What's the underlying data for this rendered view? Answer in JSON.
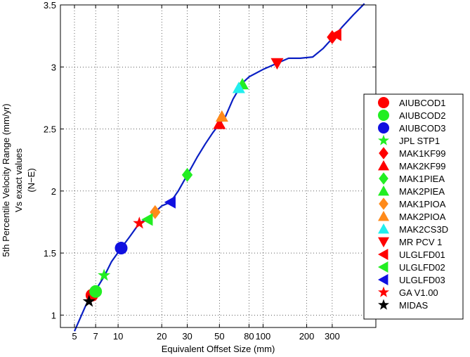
{
  "chart_data": {
    "type": "scatter",
    "title": "",
    "xlabel": "Equivalent Offset Size (mm)",
    "ylabel_lines": [
      "5th Percentile Velocity Range (mm/yr)",
      "Vs exact values",
      "(N−E)"
    ],
    "xscale": "log",
    "xlim": [
      4,
      600
    ],
    "ylim": [
      0.9,
      3.5
    ],
    "x_ticks": [
      5,
      7,
      10,
      20,
      30,
      50,
      80,
      100,
      200,
      300
    ],
    "x_tick_labels": [
      "5",
      "7",
      "10",
      "20",
      "30",
      "50",
      "80",
      "100",
      "200",
      "300"
    ],
    "y_ticks": [
      1,
      1.5,
      2,
      2.5,
      3,
      3.5
    ],
    "y_tick_labels": [
      "1",
      "1.5",
      "2",
      "2.5",
      "3",
      "3.5"
    ],
    "grid": "dotted",
    "legend_position": "right",
    "curve": {
      "color": "#0a1fc4",
      "points": [
        [
          5.0,
          0.87
        ],
        [
          5.5,
          0.98
        ],
        [
          6.0,
          1.08
        ],
        [
          6.5,
          1.15
        ],
        [
          7.0,
          1.2
        ],
        [
          8.0,
          1.31
        ],
        [
          9.0,
          1.43
        ],
        [
          10.5,
          1.54
        ],
        [
          12.0,
          1.63
        ],
        [
          14.0,
          1.74
        ],
        [
          16.0,
          1.78
        ],
        [
          18.0,
          1.83
        ],
        [
          20.0,
          1.88
        ],
        [
          23.0,
          1.91
        ],
        [
          26.0,
          2.0
        ],
        [
          30.0,
          2.13
        ],
        [
          35.0,
          2.27
        ],
        [
          40.0,
          2.38
        ],
        [
          45.0,
          2.47
        ],
        [
          50.0,
          2.54
        ],
        [
          55.0,
          2.6
        ],
        [
          62.0,
          2.74
        ],
        [
          68.0,
          2.82
        ],
        [
          72.0,
          2.87
        ],
        [
          80.0,
          2.92
        ],
        [
          100.0,
          2.98
        ],
        [
          125.0,
          3.03
        ],
        [
          150.0,
          3.07
        ],
        [
          180.0,
          3.07
        ],
        [
          220.0,
          3.08
        ],
        [
          260.0,
          3.15
        ],
        [
          300.0,
          3.23
        ],
        [
          350.0,
          3.32
        ],
        [
          420.0,
          3.42
        ],
        [
          500.0,
          3.51
        ]
      ]
    },
    "series": [
      {
        "name": "AIUBCOD1",
        "marker": "circle",
        "color": "#ff0000",
        "x": 6.6,
        "y": 1.16
      },
      {
        "name": "AIUBCOD2",
        "marker": "circle",
        "color": "#22ee22",
        "x": 7.0,
        "y": 1.19
      },
      {
        "name": "AIUBCOD3",
        "marker": "circle",
        "color": "#1010e0",
        "x": 10.5,
        "y": 1.54
      },
      {
        "name": "JPL STP1",
        "marker": "star",
        "color": "#22ee22",
        "x": 8.0,
        "y": 1.32
      },
      {
        "name": "MAK1KF99",
        "marker": "diamond",
        "color": "#ff0000",
        "x": 300,
        "y": 3.24
      },
      {
        "name": "MAK2KF99",
        "marker": "triangle-up",
        "color": "#ff0000",
        "x": 50,
        "y": 2.54
      },
      {
        "name": "MAK1PIEA",
        "marker": "diamond",
        "color": "#22ee22",
        "x": 30,
        "y": 2.13
      },
      {
        "name": "MAK2PIEA",
        "marker": "triangle-up",
        "color": "#22ee22",
        "x": 72,
        "y": 2.86
      },
      {
        "name": "MAK1PIOA",
        "marker": "diamond",
        "color": "#ff8a1a",
        "x": 18,
        "y": 1.83
      },
      {
        "name": "MAK2PIOA",
        "marker": "triangle-up",
        "color": "#ff8a1a",
        "x": 52,
        "y": 2.6
      },
      {
        "name": "MAK2CS3D",
        "marker": "triangle-up",
        "color": "#22eeee",
        "x": 68,
        "y": 2.83
      },
      {
        "name": "MR PCV 1",
        "marker": "triangle-down",
        "color": "#ff0000",
        "x": 125,
        "y": 3.03
      },
      {
        "name": "ULGLFD01",
        "marker": "triangle-left",
        "color": "#ff0000",
        "x": 320,
        "y": 3.26
      },
      {
        "name": "ULGLFD02",
        "marker": "triangle-left",
        "color": "#22ee22",
        "x": 16,
        "y": 1.77
      },
      {
        "name": "ULGLFD03",
        "marker": "triangle-left",
        "color": "#1010e0",
        "x": 23,
        "y": 1.91
      },
      {
        "name": "GA V1.00",
        "marker": "star",
        "color": "#ff0000",
        "x": 14,
        "y": 1.74
      },
      {
        "name": "MIDAS",
        "marker": "star",
        "color": "#000000",
        "x": 6.3,
        "y": 1.11
      }
    ]
  }
}
